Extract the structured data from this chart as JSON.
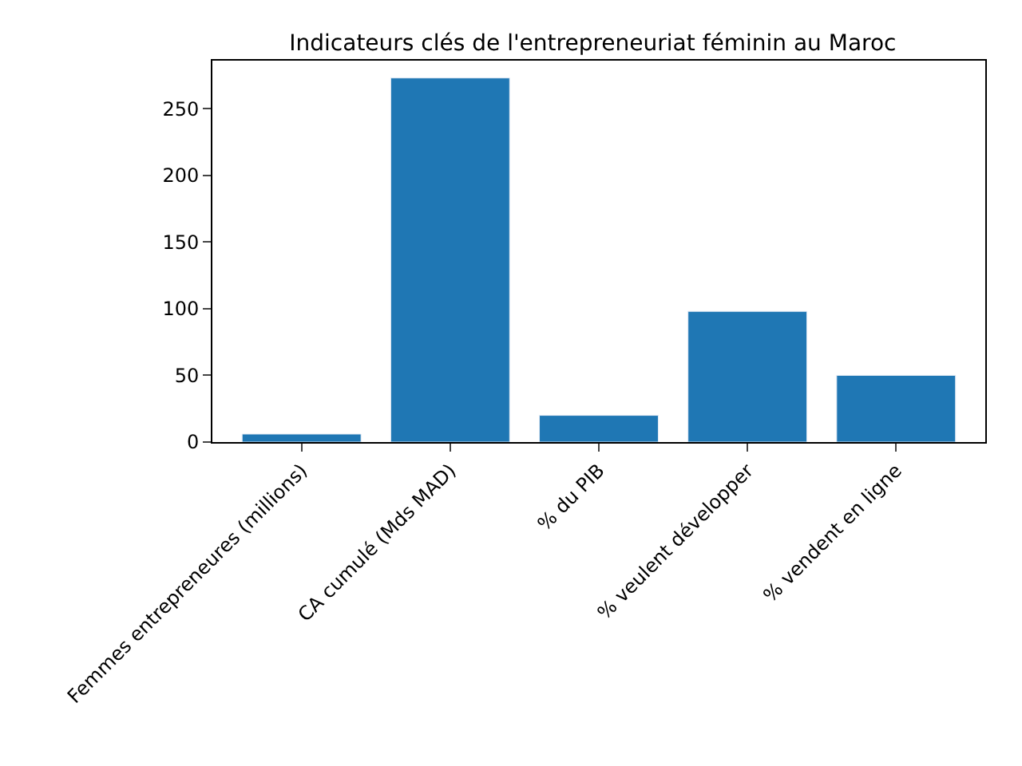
{
  "chart_data": {
    "type": "bar",
    "title": "Indicateurs clés de l'entrepreneuriat féminin au Maroc",
    "categories": [
      "Femmes entrepreneures (millions)",
      "CA cumulé (Mds MAD)",
      "% du PIB",
      "% veulent développer",
      "% vendent en ligne"
    ],
    "values": [
      6,
      273,
      20,
      98,
      50
    ],
    "color": "#1f77b4",
    "ylim": [
      0,
      286
    ],
    "yticks": [
      0,
      50,
      100,
      150,
      200,
      250
    ]
  }
}
